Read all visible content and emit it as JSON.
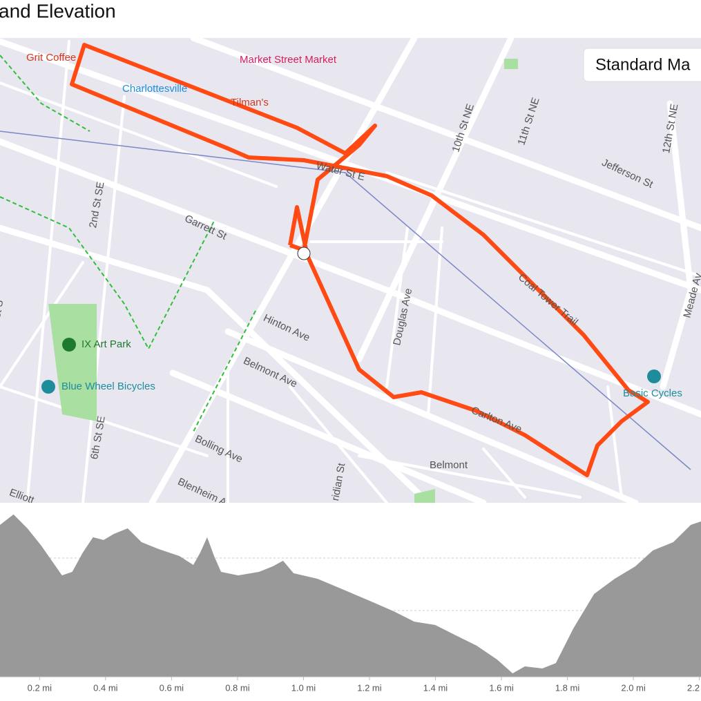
{
  "header": {
    "title": "and Elevation"
  },
  "map": {
    "style_button": "Standard Ma",
    "labels": [
      "Grit Coffee",
      "Charlottesville",
      "Market Street Market",
      "Tilman's",
      "Water St E",
      "10th St NE",
      "11th St NE",
      "12th St NE",
      "Jefferson St",
      "2nd St SE",
      "Garrett St",
      "Coal Tower Trail",
      "Meade Av",
      "Hinton Ave",
      "Douglas Ave",
      "Belmont Ave",
      "IX Art Park",
      "Blue Wheel Bicycles",
      "Basic Cycles",
      "Carlton Ave",
      "6th St SE",
      "Bolling Ave",
      "Belmont",
      "Blenheim A",
      "Elliott",
      "ridian St",
      "st S"
    ]
  },
  "chart_data": {
    "type": "area",
    "color": "#999999",
    "x": [
      0.08,
      0.121,
      0.163,
      0.205,
      0.268,
      0.299,
      0.331,
      0.362,
      0.394,
      0.425,
      0.467,
      0.509,
      0.561,
      0.624,
      0.666,
      0.687,
      0.708,
      0.729,
      0.75,
      0.802,
      0.865,
      0.907,
      0.938,
      0.97,
      1.043,
      1.127,
      1.21,
      1.273,
      1.336,
      1.399,
      1.462,
      1.525,
      1.587,
      1.634,
      1.671,
      1.724,
      1.765,
      1.818,
      1.881,
      1.943,
      2.006,
      2.059,
      2.121,
      2.174,
      2.205
    ],
    "values": [
      87.3,
      93.3,
      85.3,
      75.4,
      58.3,
      60.3,
      71.4,
      80.2,
      78.6,
      82.1,
      85.3,
      77.4,
      73.4,
      69.4,
      64.3,
      71.4,
      80.2,
      69.4,
      60.3,
      58.3,
      60.3,
      63.5,
      66.7,
      59.5,
      56.3,
      49.6,
      42.9,
      37.7,
      31.7,
      29.8,
      23.8,
      17.9,
      9.9,
      2.0,
      6.0,
      4.8,
      7.9,
      27.8,
      47.6,
      56.3,
      63.5,
      72.6,
      77.4,
      87.3,
      89.3
    ],
    "xlim": [
      0.08,
      2.205
    ],
    "ylim": [
      0,
      100
    ],
    "xticks": [
      {
        "value": 0.2,
        "label": "0.2 mi"
      },
      {
        "value": 0.4,
        "label": "0.4 mi"
      },
      {
        "value": 0.6,
        "label": "0.6 mi"
      },
      {
        "value": 0.8,
        "label": "0.8 mi"
      },
      {
        "value": 1.0,
        "label": "1.0 mi"
      },
      {
        "value": 1.2,
        "label": "1.2 mi"
      },
      {
        "value": 1.4,
        "label": "1.4 mi"
      },
      {
        "value": 1.6,
        "label": "1.6 mi"
      },
      {
        "value": 1.8,
        "label": "1.8 mi"
      },
      {
        "value": 2.0,
        "label": "2.0 mi"
      },
      {
        "value": 2.2,
        "label": "2.2 mi"
      }
    ]
  }
}
